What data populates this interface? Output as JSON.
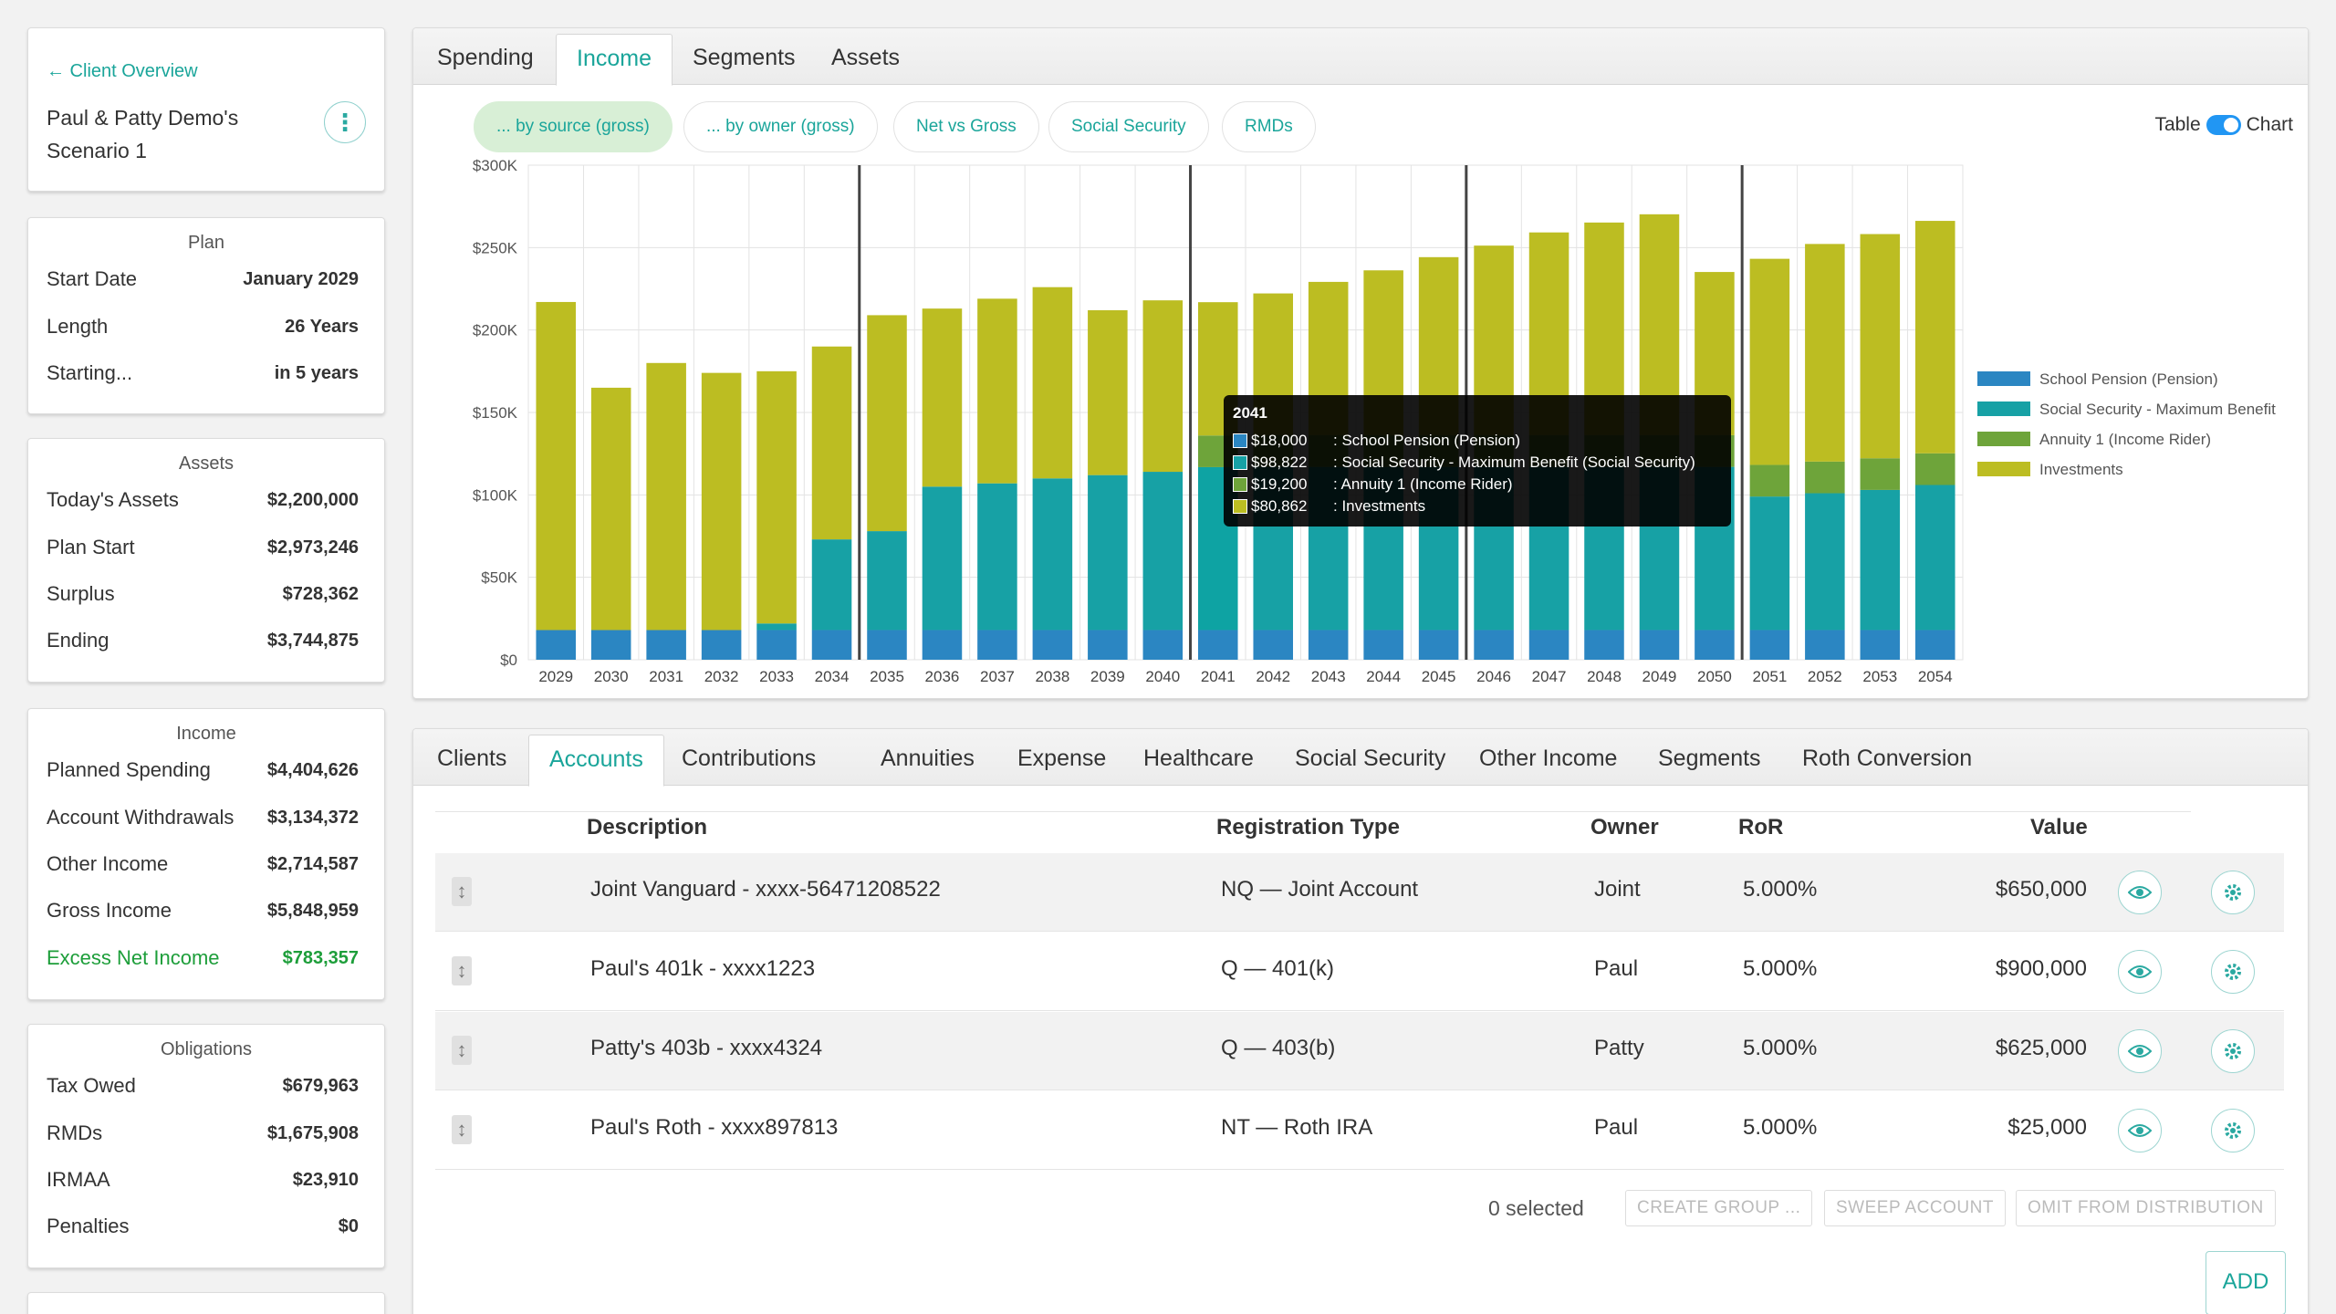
{
  "client": {
    "back_label": "← Client Overview",
    "scenario_name": "Paul & Patty Demo's Scenario 1",
    "more_icon": "⋮"
  },
  "plan": {
    "title": "Plan",
    "rows": [
      {
        "label": "Start Date",
        "value": "January 2029"
      },
      {
        "label": "Length",
        "value": "26 Years"
      },
      {
        "label": "Starting...",
        "value": "in 5 years"
      }
    ]
  },
  "assets": {
    "title": "Assets",
    "rows": [
      {
        "label": "Today's Assets",
        "value": "$2,200,000"
      },
      {
        "label": "Plan Start",
        "value": "$2,973,246"
      },
      {
        "label": "Surplus",
        "value": "$728,362"
      },
      {
        "label": "Ending",
        "value": "$3,744,875"
      }
    ]
  },
  "income": {
    "title": "Income",
    "rows": [
      {
        "label": "Planned Spending",
        "value": "$4,404,626"
      },
      {
        "label": "Account Withdrawals",
        "value": "$3,134,372"
      },
      {
        "label": "Other Income",
        "value": "$2,714,587"
      },
      {
        "label": "Gross Income",
        "value": "$5,848,959"
      },
      {
        "label": "Excess Net Income",
        "value": "$783,357"
      }
    ]
  },
  "obligations": {
    "title": "Obligations",
    "rows": [
      {
        "label": "Tax Owed",
        "value": "$679,963"
      },
      {
        "label": "RMDs",
        "value": "$1,675,908"
      },
      {
        "label": "IRMAA",
        "value": "$23,910"
      },
      {
        "label": "Penalties",
        "value": "$0"
      }
    ]
  },
  "chart_tabs": [
    "Spending",
    "Income",
    "Segments",
    "Assets"
  ],
  "chart_active_tab": "Income",
  "chart_pills": [
    "... by source (gross)",
    "... by owner (gross)",
    "Net vs Gross",
    "Social Security",
    "RMDs"
  ],
  "view_toggle": {
    "left": "Table",
    "right": "Chart"
  },
  "tooltip": {
    "title": "2041",
    "rows": [
      {
        "value": "$18,000",
        "label": ": School Pension (Pension)",
        "color": "#2b86c2"
      },
      {
        "value": "$98,822",
        "label": ": Social Security - Maximum Benefit (Social Security)",
        "color": "#17a1a5"
      },
      {
        "value": "$19,200",
        "label": ": Annuity 1 (Income Rider)",
        "color": "#6ea43a"
      },
      {
        "value": "$80,862",
        "label": ": Investments",
        "color": "#bcbd22"
      }
    ]
  },
  "chart_data": {
    "type": "bar",
    "stacked": true,
    "ylim": [
      0,
      300000
    ],
    "yticks": [
      "$0",
      "$50K",
      "$100K",
      "$150K",
      "$200K",
      "$250K",
      "$300K"
    ],
    "grid": true,
    "legend_position": "right",
    "categories": [
      "2029",
      "2030",
      "2031",
      "2032",
      "2033",
      "2034",
      "2035",
      "2036",
      "2037",
      "2038",
      "2039",
      "2040",
      "2041",
      "2042",
      "2043",
      "2044",
      "2045",
      "2046",
      "2047",
      "2048",
      "2049",
      "2050",
      "2051",
      "2052",
      "2053",
      "2054"
    ],
    "markers_after": [
      "2034",
      "2040",
      "2045",
      "2050"
    ],
    "series": [
      {
        "name": "School Pension (Pension)",
        "color": "#2b86c2",
        "values": [
          18000,
          18000,
          18000,
          18000,
          18000,
          18000,
          18000,
          18000,
          18000,
          18000,
          18000,
          18000,
          18000,
          18000,
          18000,
          18000,
          18000,
          18000,
          18000,
          18000,
          18000,
          18000,
          18000,
          18000,
          18000,
          18000
        ]
      },
      {
        "name": "Social Security - Maximum Benefit",
        "color": "#17a1a5",
        "values": [
          0,
          0,
          0,
          0,
          4000,
          55000,
          60000,
          87000,
          89000,
          92000,
          94000,
          96000,
          98822,
          99000,
          99000,
          99000,
          99000,
          99000,
          99000,
          99000,
          99000,
          99000,
          81000,
          83000,
          85000,
          88000
        ]
      },
      {
        "name": "Annuity 1 (Income Rider)",
        "color": "#6ea43a",
        "values": [
          0,
          0,
          0,
          0,
          0,
          0,
          0,
          0,
          0,
          0,
          0,
          0,
          19200,
          19200,
          19200,
          19200,
          19200,
          19200,
          19200,
          19200,
          19200,
          19200,
          19200,
          19200,
          19200,
          19200
        ]
      },
      {
        "name": "Investments",
        "color": "#bcbd22",
        "values": [
          199000,
          147000,
          162000,
          156000,
          153000,
          117000,
          131000,
          108000,
          112000,
          116000,
          100000,
          104000,
          80862,
          86000,
          93000,
          100000,
          108000,
          115000,
          123000,
          129000,
          134000,
          99000,
          125000,
          132000,
          136000,
          141000
        ]
      }
    ]
  },
  "detail_tabs": [
    "Clients",
    "Accounts",
    "Contributions",
    "Annuities",
    "Expense",
    "Healthcare",
    "Social Security",
    "Other Income",
    "Segments",
    "Roth Conversion"
  ],
  "detail_active_tab": "Accounts",
  "accounts": {
    "columns": {
      "description": "Description",
      "registration": "Registration Type",
      "owner": "Owner",
      "ror": "RoR",
      "value": "Value"
    },
    "rows": [
      {
        "description": "Joint Vanguard - xxxx-56471208522",
        "registration": "NQ — Joint Account",
        "owner": "Joint",
        "ror": "5.000%",
        "value": "$650,000"
      },
      {
        "description": "Paul's 401k - xxxx1223",
        "registration": "Q — 401(k)",
        "owner": "Paul",
        "ror": "5.000%",
        "value": "$900,000"
      },
      {
        "description": "Patty's 403b - xxxx4324",
        "registration": "Q — 403(b)",
        "owner": "Patty",
        "ror": "5.000%",
        "value": "$625,000"
      },
      {
        "description": "Paul's Roth - xxxx897813",
        "registration": "NT — Roth IRA",
        "owner": "Paul",
        "ror": "5.000%",
        "value": "$25,000"
      }
    ],
    "selected_label": "0 selected",
    "actions": [
      "CREATE GROUP ...",
      "SWEEP ACCOUNT",
      "OMIT FROM DISTRIBUTION"
    ],
    "add_label": "ADD"
  }
}
